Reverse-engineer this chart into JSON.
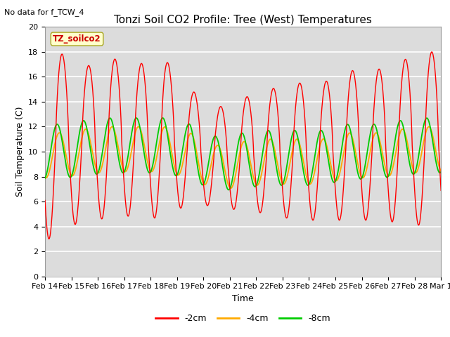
{
  "title": "Tonzi Soil CO2 Profile: Tree (West) Temperatures",
  "subtitle": "No data for f_TCW_4",
  "ylabel": "Soil Temperature (C)",
  "xlabel": "Time",
  "box_label": "TZ_soilco2",
  "ylim": [
    0,
    20
  ],
  "yticks": [
    0,
    2,
    4,
    6,
    8,
    10,
    12,
    14,
    16,
    18,
    20
  ],
  "xtick_labels": [
    "Feb 14",
    "Feb 15",
    "Feb 16",
    "Feb 17",
    "Feb 18",
    "Feb 19",
    "Feb 20",
    "Feb 21",
    "Feb 22",
    "Feb 23",
    "Feb 24",
    "Feb 25",
    "Feb 26",
    "Feb 27",
    "Feb 28",
    "Mar 1"
  ],
  "legend_entries": [
    "-2cm",
    "-4cm",
    "-8cm"
  ],
  "legend_colors": [
    "#ff0000",
    "#ffaa00",
    "#00cc00"
  ],
  "plot_bg_color": "#dcdcdc",
  "grid_color": "#ffffff",
  "title_fontsize": 11,
  "axis_fontsize": 9,
  "tick_fontsize": 8
}
